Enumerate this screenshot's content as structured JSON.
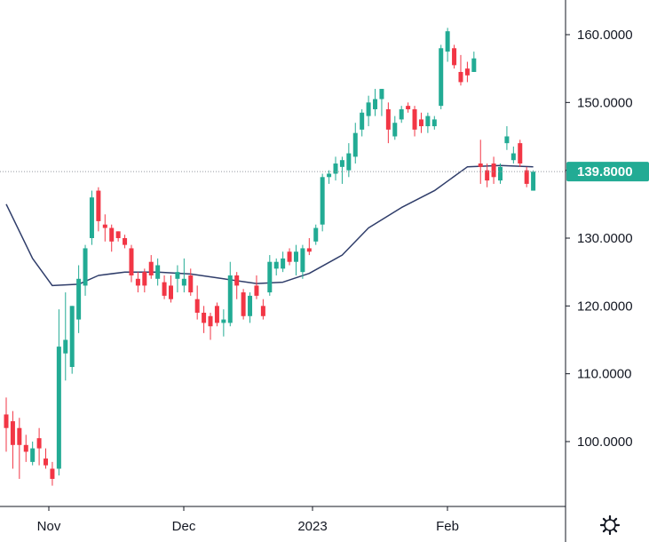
{
  "colors": {
    "up": "#22ab94",
    "down": "#f23645",
    "ma": "#2f3d6a",
    "axis": "#131722",
    "last_price_label": "#22ab94",
    "last_price_line": "#9598a1"
  },
  "icons": {
    "settings": "gear-icon"
  },
  "chart_data": {
    "type": "candlestick",
    "title": "",
    "xlabel": "",
    "ylabel": "",
    "ylim": [
      91,
      164
    ],
    "y_ticks": [
      "160.0000",
      "150.0000",
      "140.0000",
      "130.0000",
      "120.0000",
      "110.0000",
      "100.0000"
    ],
    "x_ticks": [
      "Nov",
      "Dec",
      "2023",
      "Feb"
    ],
    "last_price": 139.8,
    "last_price_label": "139.8000",
    "grid": false,
    "ohlc": [
      {
        "x": "Oct 27",
        "o": 104,
        "h": 106.5,
        "l": 98.5,
        "c": 102
      },
      {
        "x": "Oct 28",
        "o": 103,
        "h": 104.5,
        "l": 96,
        "c": 99.5
      },
      {
        "x": "Oct 31",
        "o": 102,
        "h": 103.5,
        "l": 94.5,
        "c": 99.5
      },
      {
        "x": "Nov 01",
        "o": 99.5,
        "h": 101,
        "l": 97,
        "c": 98.5
      },
      {
        "x": "Nov 02",
        "o": 97,
        "h": 100,
        "l": 96.5,
        "c": 99
      },
      {
        "x": "Nov 03",
        "o": 100.5,
        "h": 102,
        "l": 96.5,
        "c": 99
      },
      {
        "x": "Nov 04",
        "o": 97.5,
        "h": 99,
        "l": 96,
        "c": 96.5
      },
      {
        "x": "Nov 07",
        "o": 96,
        "h": 97,
        "l": 93.5,
        "c": 94.5
      },
      {
        "x": "Nov 08",
        "o": 96,
        "h": 119.5,
        "l": 95,
        "c": 114
      },
      {
        "x": "Nov 09",
        "o": 113,
        "h": 122,
        "l": 109,
        "c": 115
      },
      {
        "x": "Nov 10",
        "o": 111,
        "h": 120,
        "l": 110,
        "c": 120
      },
      {
        "x": "Nov 11",
        "o": 118,
        "h": 126,
        "l": 116,
        "c": 124
      },
      {
        "x": "Nov 14",
        "o": 123,
        "h": 129,
        "l": 121.5,
        "c": 128.5
      },
      {
        "x": "Nov 15",
        "o": 130,
        "h": 137,
        "l": 129,
        "c": 136
      },
      {
        "x": "Nov 16",
        "o": 137,
        "h": 137.5,
        "l": 131,
        "c": 132.5
      },
      {
        "x": "Nov 17",
        "o": 132,
        "h": 133.5,
        "l": 129.5,
        "c": 131.5
      },
      {
        "x": "Nov 18",
        "o": 131.5,
        "h": 132,
        "l": 128,
        "c": 129.5
      },
      {
        "x": "Nov 21",
        "o": 131,
        "h": 131,
        "l": 129.5,
        "c": 130
      },
      {
        "x": "Nov 22",
        "o": 130,
        "h": 130.5,
        "l": 128.5,
        "c": 129
      },
      {
        "x": "Nov 23",
        "o": 128.5,
        "h": 129,
        "l": 123.5,
        "c": 124.5
      },
      {
        "x": "Nov 25",
        "o": 124,
        "h": 125,
        "l": 122,
        "c": 123
      },
      {
        "x": "Nov 28",
        "o": 125,
        "h": 125.5,
        "l": 122,
        "c": 123
      },
      {
        "x": "Nov 29",
        "o": 126.5,
        "h": 127.5,
        "l": 124,
        "c": 124.5
      },
      {
        "x": "Nov 30",
        "o": 124,
        "h": 127,
        "l": 123,
        "c": 126
      },
      {
        "x": "Dec 01",
        "o": 123.5,
        "h": 124.5,
        "l": 121,
        "c": 121.5
      },
      {
        "x": "Dec 02",
        "o": 123,
        "h": 124.5,
        "l": 120.5,
        "c": 121
      },
      {
        "x": "Dec 05",
        "o": 124,
        "h": 126,
        "l": 122,
        "c": 125
      },
      {
        "x": "Dec 06",
        "o": 123,
        "h": 127,
        "l": 122,
        "c": 124
      },
      {
        "x": "Dec 07",
        "o": 124.5,
        "h": 125.5,
        "l": 121.5,
        "c": 122
      },
      {
        "x": "Dec 08",
        "o": 121,
        "h": 123,
        "l": 118,
        "c": 119
      },
      {
        "x": "Dec 09",
        "o": 119,
        "h": 120,
        "l": 116,
        "c": 117.5
      },
      {
        "x": "Dec 12",
        "o": 118.5,
        "h": 119,
        "l": 115,
        "c": 117
      },
      {
        "x": "Dec 13",
        "o": 120,
        "h": 120.5,
        "l": 117,
        "c": 117.5
      },
      {
        "x": "Dec 14",
        "o": 117.5,
        "h": 119.5,
        "l": 115.5,
        "c": 118
      },
      {
        "x": "Dec 15",
        "o": 117.5,
        "h": 126.5,
        "l": 117,
        "c": 124.5
      },
      {
        "x": "Dec 16",
        "o": 124.5,
        "h": 125,
        "l": 121,
        "c": 123
      },
      {
        "x": "Dec 19",
        "o": 122,
        "h": 122.5,
        "l": 118,
        "c": 118.5
      },
      {
        "x": "Dec 20",
        "o": 118.5,
        "h": 122,
        "l": 117.5,
        "c": 121.5
      },
      {
        "x": "Dec 21",
        "o": 123,
        "h": 124.5,
        "l": 121,
        "c": 121.5
      },
      {
        "x": "Dec 22",
        "o": 120,
        "h": 121,
        "l": 118,
        "c": 118.5
      },
      {
        "x": "Dec 23",
        "o": 122,
        "h": 127.5,
        "l": 121.5,
        "c": 126.5
      },
      {
        "x": "Dec 27",
        "o": 125.5,
        "h": 127,
        "l": 124.5,
        "c": 126.5
      },
      {
        "x": "Dec 28",
        "o": 125.5,
        "h": 128,
        "l": 125,
        "c": 127
      },
      {
        "x": "Dec 29",
        "o": 128,
        "h": 128.5,
        "l": 126,
        "c": 126.5
      },
      {
        "x": "Dec 30",
        "o": 126.5,
        "h": 129,
        "l": 124.5,
        "c": 128
      },
      {
        "x": "Jan 03",
        "o": 125,
        "h": 129,
        "l": 124,
        "c": 128.5
      },
      {
        "x": "Jan 04",
        "o": 128.5,
        "h": 130,
        "l": 127.5,
        "c": 128
      },
      {
        "x": "Jan 05",
        "o": 129.5,
        "h": 132,
        "l": 129,
        "c": 131.5
      },
      {
        "x": "Jan 06",
        "o": 132,
        "h": 139.5,
        "l": 131,
        "c": 139
      },
      {
        "x": "Jan 09",
        "o": 139,
        "h": 140,
        "l": 138,
        "c": 139.5
      },
      {
        "x": "Jan 10",
        "o": 139.5,
        "h": 142,
        "l": 138.5,
        "c": 141
      },
      {
        "x": "Jan 11",
        "o": 140.5,
        "h": 142,
        "l": 138,
        "c": 141.5
      },
      {
        "x": "Jan 12",
        "o": 140,
        "h": 144,
        "l": 139,
        "c": 142.5
      },
      {
        "x": "Jan 13",
        "o": 142,
        "h": 147,
        "l": 141,
        "c": 145.5
      },
      {
        "x": "Jan 17",
        "o": 146,
        "h": 149,
        "l": 145,
        "c": 148.5
      },
      {
        "x": "Jan 18",
        "o": 148,
        "h": 151,
        "l": 146.5,
        "c": 150
      },
      {
        "x": "Jan 19",
        "o": 149,
        "h": 152,
        "l": 148,
        "c": 150.5
      },
      {
        "x": "Jan 20",
        "o": 150.5,
        "h": 152,
        "l": 148,
        "c": 152
      },
      {
        "x": "Jan 23",
        "o": 149,
        "h": 150,
        "l": 144,
        "c": 146
      },
      {
        "x": "Jan 24",
        "o": 145,
        "h": 148,
        "l": 144.5,
        "c": 147
      },
      {
        "x": "Jan 25",
        "o": 147.5,
        "h": 149.5,
        "l": 147,
        "c": 149
      },
      {
        "x": "Jan 26",
        "o": 149.5,
        "h": 150,
        "l": 148.5,
        "c": 149
      },
      {
        "x": "Jan 27",
        "o": 149,
        "h": 149.5,
        "l": 145,
        "c": 146
      },
      {
        "x": "Jan 30",
        "o": 147.5,
        "h": 148.5,
        "l": 145.5,
        "c": 146.5
      },
      {
        "x": "Jan 31",
        "o": 146.5,
        "h": 148.5,
        "l": 145.5,
        "c": 148
      },
      {
        "x": "Feb 01",
        "o": 146.5,
        "h": 148,
        "l": 146,
        "c": 147.5
      },
      {
        "x": "Feb 02",
        "o": 149.5,
        "h": 158.5,
        "l": 149,
        "c": 158
      },
      {
        "x": "Feb 03",
        "o": 157.5,
        "h": 161,
        "l": 156,
        "c": 160.5
      },
      {
        "x": "Feb 06",
        "o": 158,
        "h": 158.5,
        "l": 155,
        "c": 155.5
      },
      {
        "x": "Feb 07",
        "o": 154.5,
        "h": 157,
        "l": 152.5,
        "c": 153
      },
      {
        "x": "Feb 08",
        "o": 155,
        "h": 156,
        "l": 153,
        "c": 154
      },
      {
        "x": "Feb 09",
        "o": 154.5,
        "h": 157.5,
        "l": 154.5,
        "c": 156.5
      },
      {
        "x": "Feb 10",
        "o": 141,
        "h": 144.5,
        "l": 138,
        "c": 140.5
      },
      {
        "x": "Feb 13",
        "o": 140,
        "h": 141,
        "l": 137.5,
        "c": 138.5
      },
      {
        "x": "Feb 14",
        "o": 141,
        "h": 142,
        "l": 138,
        "c": 139
      },
      {
        "x": "Feb 15",
        "o": 138.5,
        "h": 141,
        "l": 138,
        "c": 140.5
      },
      {
        "x": "Feb 16",
        "o": 144,
        "h": 146.5,
        "l": 143,
        "c": 145
      },
      {
        "x": "Feb 17",
        "o": 141.5,
        "h": 143.5,
        "l": 141,
        "c": 142.5
      },
      {
        "x": "Feb 21",
        "o": 144,
        "h": 144.5,
        "l": 140.5,
        "c": 141
      },
      {
        "x": "Feb 22",
        "o": 140,
        "h": 140.5,
        "l": 137.5,
        "c": 138
      },
      {
        "x": "Feb 23",
        "o": 137,
        "h": 140,
        "l": 137,
        "c": 139.8
      }
    ],
    "ma_period": 20,
    "ma": [
      {
        "x": "Oct 27",
        "y": 135
      },
      {
        "x": "Nov 02",
        "y": 127
      },
      {
        "x": "Nov 07",
        "y": 123
      },
      {
        "x": "Nov 11",
        "y": 123.2
      },
      {
        "x": "Nov 16",
        "y": 124.5
      },
      {
        "x": "Nov 22",
        "y": 125
      },
      {
        "x": "Nov 30",
        "y": 125
      },
      {
        "x": "Dec 07",
        "y": 124.7
      },
      {
        "x": "Dec 14",
        "y": 124
      },
      {
        "x": "Dec 21",
        "y": 123.3
      },
      {
        "x": "Dec 28",
        "y": 123.5
      },
      {
        "x": "Jan 04",
        "y": 124.8
      },
      {
        "x": "Jan 11",
        "y": 127.5
      },
      {
        "x": "Jan 18",
        "y": 131.5
      },
      {
        "x": "Jan 25",
        "y": 134.5
      },
      {
        "x": "Feb 01",
        "y": 137
      },
      {
        "x": "Feb 08",
        "y": 140.5
      },
      {
        "x": "Feb 15",
        "y": 140.7
      },
      {
        "x": "Feb 23",
        "y": 140.5
      }
    ]
  }
}
